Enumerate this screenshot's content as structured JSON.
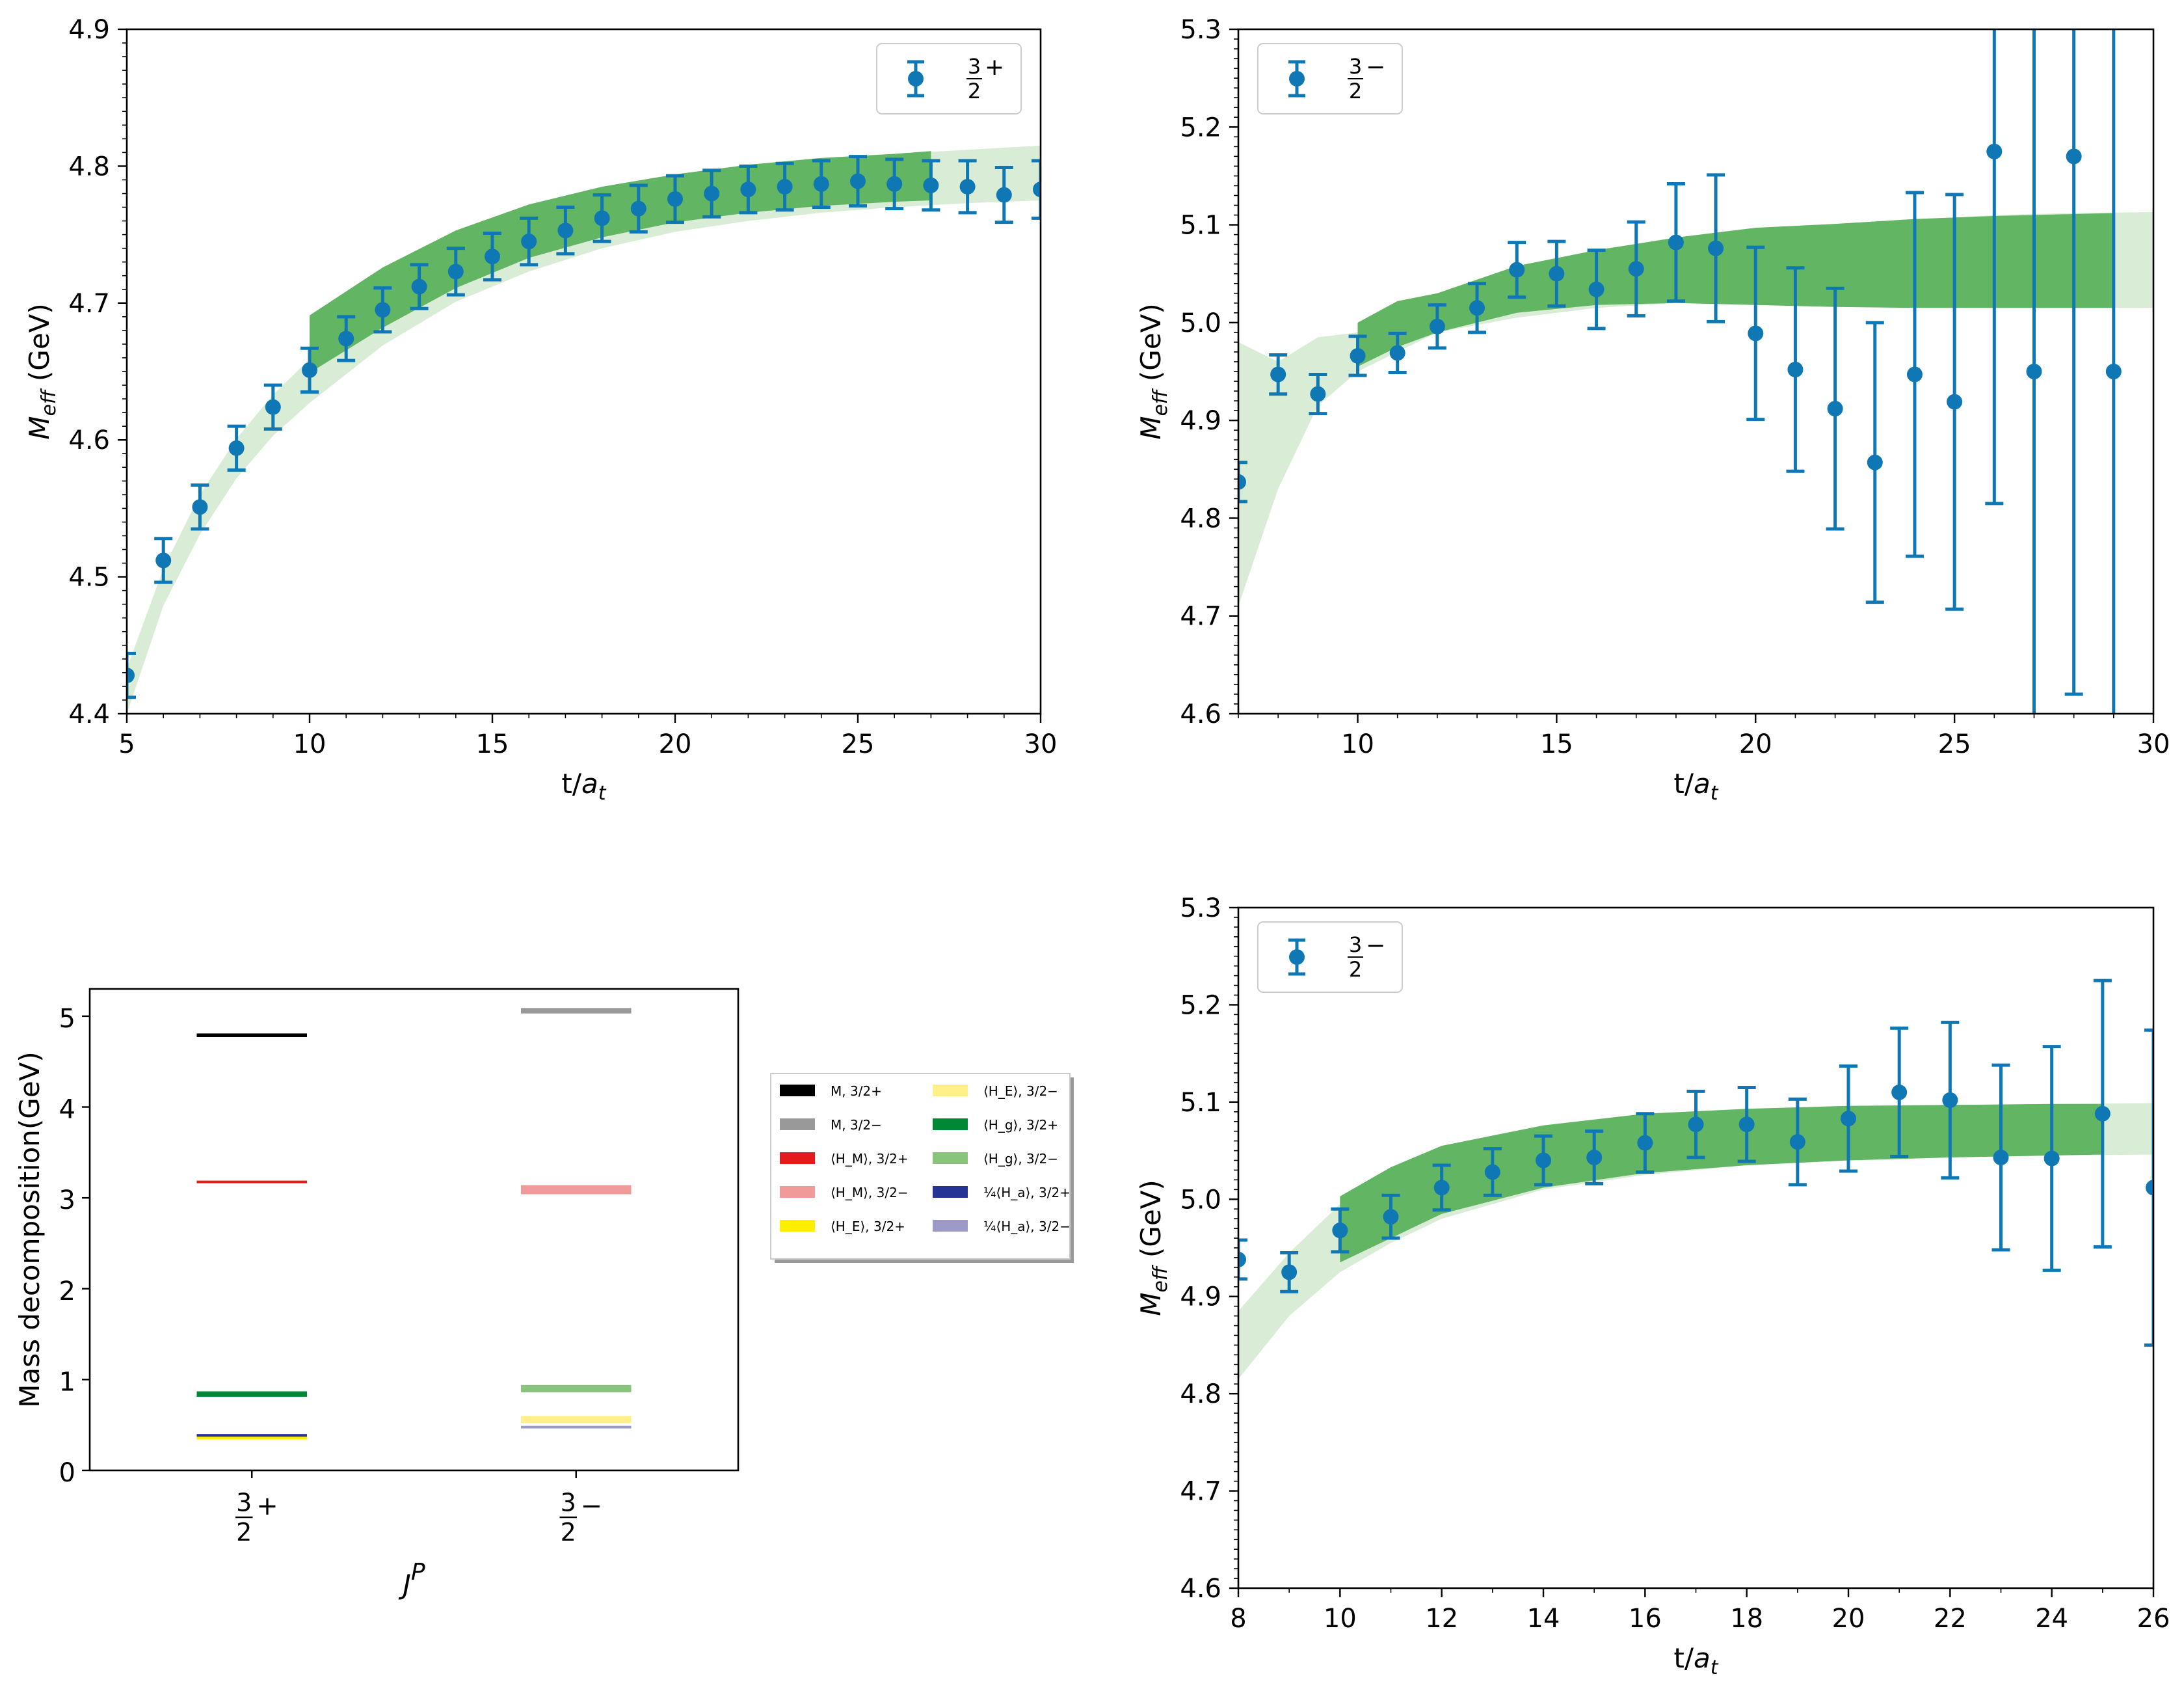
{
  "chart_data": [
    {
      "type": "scatter",
      "panel": "top-left",
      "xlabel": "t/a_t",
      "ylabel": "M_eff (GeV)",
      "xlim": [
        5,
        30
      ],
      "ylim": [
        4.4,
        4.9
      ],
      "xticks": [
        5,
        10,
        15,
        20,
        25,
        30
      ],
      "yticks": [
        4.4,
        4.5,
        4.6,
        4.7,
        4.8,
        4.9
      ],
      "yticks_fmt": 1,
      "legend": {
        "placement": "top-right",
        "num": "3",
        "den": "2",
        "sign": "+"
      },
      "series": [
        {
          "name": "3/2+",
          "x": [
            5,
            6,
            7,
            8,
            9,
            10,
            11,
            12,
            13,
            14,
            15,
            16,
            17,
            18,
            19,
            20,
            21,
            22,
            23,
            24,
            25,
            26,
            27,
            28,
            29,
            30
          ],
          "y": [
            4.428,
            4.512,
            4.551,
            4.594,
            4.624,
            4.651,
            4.674,
            4.695,
            4.712,
            4.723,
            4.734,
            4.745,
            4.753,
            4.762,
            4.769,
            4.776,
            4.78,
            4.783,
            4.785,
            4.787,
            4.789,
            4.787,
            4.786,
            4.785,
            4.779,
            4.783
          ],
          "err": [
            0.016,
            0.016,
            0.016,
            0.016,
            0.016,
            0.016,
            0.016,
            0.016,
            0.016,
            0.017,
            0.017,
            0.017,
            0.017,
            0.017,
            0.017,
            0.017,
            0.017,
            0.017,
            0.017,
            0.017,
            0.018,
            0.018,
            0.018,
            0.019,
            0.02,
            0.021
          ]
        }
      ],
      "band_light": {
        "x": [
          5,
          6,
          7,
          8,
          9,
          10,
          12,
          14,
          16,
          18,
          20,
          22,
          24,
          26,
          28,
          30
        ],
        "lo": [
          4.4,
          4.479,
          4.531,
          4.572,
          4.603,
          4.627,
          4.669,
          4.701,
          4.723,
          4.74,
          4.752,
          4.76,
          4.766,
          4.77,
          4.773,
          4.775
        ],
        "hi": [
          4.433,
          4.506,
          4.56,
          4.601,
          4.633,
          4.659,
          4.703,
          4.737,
          4.762,
          4.78,
          4.791,
          4.799,
          4.805,
          4.809,
          4.812,
          4.815
        ]
      },
      "band_dark": {
        "x": [
          10,
          12,
          14,
          16,
          18,
          20,
          22,
          24,
          26,
          27
        ],
        "lo": [
          4.649,
          4.682,
          4.711,
          4.733,
          4.748,
          4.759,
          4.766,
          4.771,
          4.774,
          4.775
        ],
        "hi": [
          4.691,
          4.726,
          4.753,
          4.772,
          4.785,
          4.794,
          4.801,
          4.806,
          4.809,
          4.811
        ]
      }
    },
    {
      "type": "scatter",
      "panel": "top-right",
      "xlabel": "t/a_t",
      "ylabel": "M_eff (GeV)",
      "xlim": [
        7,
        30
      ],
      "ylim": [
        4.6,
        5.3
      ],
      "xticks": [
        10,
        15,
        20,
        25,
        30
      ],
      "yticks": [
        4.6,
        4.7,
        4.8,
        4.9,
        5.0,
        5.1,
        5.2,
        5.3
      ],
      "yticks_fmt": 1,
      "legend": {
        "placement": "top-left",
        "num": "3",
        "den": "2",
        "sign": "−"
      },
      "series": [
        {
          "name": "3/2−",
          "x": [
            7,
            8,
            9,
            10,
            11,
            12,
            13,
            14,
            15,
            16,
            17,
            18,
            19,
            20,
            21,
            22,
            23,
            24,
            25,
            26,
            27,
            28,
            29
          ],
          "y": [
            4.837,
            4.947,
            4.927,
            4.966,
            4.969,
            4.996,
            5.015,
            5.054,
            5.05,
            5.034,
            5.055,
            5.082,
            5.076,
            4.989,
            4.952,
            4.912,
            4.857,
            4.947,
            4.919,
            5.175,
            4.95,
            5.17,
            4.95
          ],
          "err": [
            0.02,
            0.02,
            0.02,
            0.02,
            0.02,
            0.022,
            0.025,
            0.028,
            0.033,
            0.04,
            0.048,
            0.06,
            0.075,
            0.088,
            0.104,
            0.123,
            0.143,
            0.186,
            0.212,
            0.36,
            0.5,
            0.55,
            0.55
          ]
        }
      ],
      "band_light": {
        "x": [
          7,
          8,
          9,
          10,
          12,
          14,
          16,
          18,
          20,
          22,
          24,
          26,
          28,
          30
        ],
        "lo": [
          4.71,
          4.83,
          4.915,
          4.95,
          4.99,
          5.005,
          5.015,
          5.02,
          5.02,
          5.018,
          5.016,
          5.015,
          5.015,
          5.015
        ],
        "hi": [
          4.98,
          4.96,
          4.985,
          4.99,
          5.03,
          5.055,
          5.075,
          5.085,
          5.095,
          5.1,
          5.105,
          5.11,
          5.112,
          5.113
        ]
      },
      "band_dark": {
        "x": [
          10,
          11,
          12,
          14,
          16,
          18,
          20,
          22,
          24,
          26,
          28,
          29
        ],
        "lo": [
          4.955,
          4.975,
          4.99,
          5.01,
          5.018,
          5.02,
          5.018,
          5.016,
          5.015,
          5.015,
          5.015,
          5.015
        ],
        "hi": [
          5.0,
          5.022,
          5.03,
          5.058,
          5.074,
          5.087,
          5.097,
          5.101,
          5.106,
          5.109,
          5.111,
          5.112
        ]
      }
    },
    {
      "type": "scatter",
      "panel": "bottom-right",
      "xlabel": "t/a_t",
      "ylabel": "M_eff (GeV)",
      "xlim": [
        8,
        26
      ],
      "ylim": [
        4.6,
        5.3
      ],
      "xticks": [
        8,
        10,
        12,
        14,
        16,
        18,
        20,
        22,
        24,
        26
      ],
      "yticks": [
        4.6,
        4.7,
        4.8,
        4.9,
        5.0,
        5.1,
        5.2,
        5.3
      ],
      "yticks_fmt": 1,
      "legend": {
        "placement": "top-left",
        "num": "3",
        "den": "2",
        "sign": "−"
      },
      "series": [
        {
          "name": "3/2−",
          "x": [
            8,
            9,
            10,
            11,
            12,
            13,
            14,
            15,
            16,
            17,
            18,
            19,
            20,
            21,
            22,
            23,
            24,
            25,
            26
          ],
          "y": [
            4.938,
            4.925,
            4.968,
            4.982,
            5.012,
            5.028,
            5.04,
            5.043,
            5.058,
            5.077,
            5.077,
            5.059,
            5.083,
            5.11,
            5.102,
            5.043,
            5.042,
            5.088,
            5.012
          ],
          "err": [
            0.02,
            0.02,
            0.022,
            0.022,
            0.023,
            0.024,
            0.025,
            0.027,
            0.03,
            0.034,
            0.038,
            0.044,
            0.054,
            0.066,
            0.08,
            0.095,
            0.115,
            0.137,
            0.162
          ]
        }
      ],
      "band_light": {
        "x": [
          8,
          9,
          10,
          11,
          12,
          14,
          16,
          18,
          20,
          22,
          24,
          26
        ],
        "lo": [
          4.815,
          4.88,
          4.925,
          4.955,
          4.98,
          5.01,
          5.025,
          5.035,
          5.04,
          5.043,
          5.045,
          5.046
        ],
        "hi": [
          4.885,
          4.945,
          4.995,
          5.03,
          5.052,
          5.075,
          5.087,
          5.093,
          5.096,
          5.097,
          5.098,
          5.099
        ]
      },
      "band_dark": {
        "x": [
          10,
          11,
          12,
          14,
          16,
          18,
          20,
          22,
          24,
          25
        ],
        "lo": [
          4.935,
          4.96,
          4.985,
          5.012,
          5.027,
          5.035,
          5.04,
          5.043,
          5.045,
          5.046
        ],
        "hi": [
          5.003,
          5.033,
          5.055,
          5.076,
          5.088,
          5.093,
          5.096,
          5.097,
          5.098,
          5.098
        ]
      }
    },
    {
      "type": "bar",
      "panel": "bottom-left",
      "xlabel": "J^P",
      "ylabel": "Mass decomposition(GeV)",
      "xlim": [
        -0.5,
        1.5
      ],
      "ylim": [
        0,
        5.3
      ],
      "yticks": [
        0,
        1,
        2,
        3,
        4,
        5
      ],
      "yticks_fmt": 0,
      "categories": [
        {
          "num": "3",
          "den": "2",
          "sign": "+"
        },
        {
          "num": "3",
          "den": "2",
          "sign": "−"
        }
      ],
      "series": [
        {
          "label": "M, 3/2+",
          "cat": 0,
          "value": 4.79,
          "err": 0.02,
          "color": "#000000"
        },
        {
          "label": "M, 3/2−",
          "cat": 1,
          "value": 5.06,
          "err": 0.03,
          "color": "#999999"
        },
        {
          "label": "⟨H_M⟩, 3/2+",
          "cat": 0,
          "value": 3.18,
          "err": 0.01,
          "color": "#e41a1c"
        },
        {
          "label": "⟨H_M⟩, 3/2−",
          "cat": 1,
          "value": 3.09,
          "err": 0.05,
          "color": "#f09a9a"
        },
        {
          "label": "⟨H_E⟩, 3/2+",
          "cat": 0,
          "value": 0.36,
          "err": 0.02,
          "color": "#ffee00"
        },
        {
          "label": "⟨H_E⟩, 3/2−",
          "cat": 1,
          "value": 0.56,
          "err": 0.04,
          "color": "#fff08a"
        },
        {
          "label": "⟨H_g⟩, 3/2+",
          "cat": 0,
          "value": 0.84,
          "err": 0.03,
          "color": "#008837"
        },
        {
          "label": "⟨H_g⟩, 3/2−",
          "cat": 1,
          "value": 0.9,
          "err": 0.04,
          "color": "#88c47c"
        },
        {
          "label": "¼⟨H_a⟩, 3/2+",
          "cat": 0,
          "value": 0.39,
          "err": 0.01,
          "color": "#253494"
        },
        {
          "label": "¼⟨H_a⟩, 3/2−",
          "cat": 1,
          "value": 0.48,
          "err": 0.01,
          "color": "#9e9ac8"
        }
      ],
      "legend": {
        "placement": "right, outside",
        "columns": 2
      }
    }
  ]
}
